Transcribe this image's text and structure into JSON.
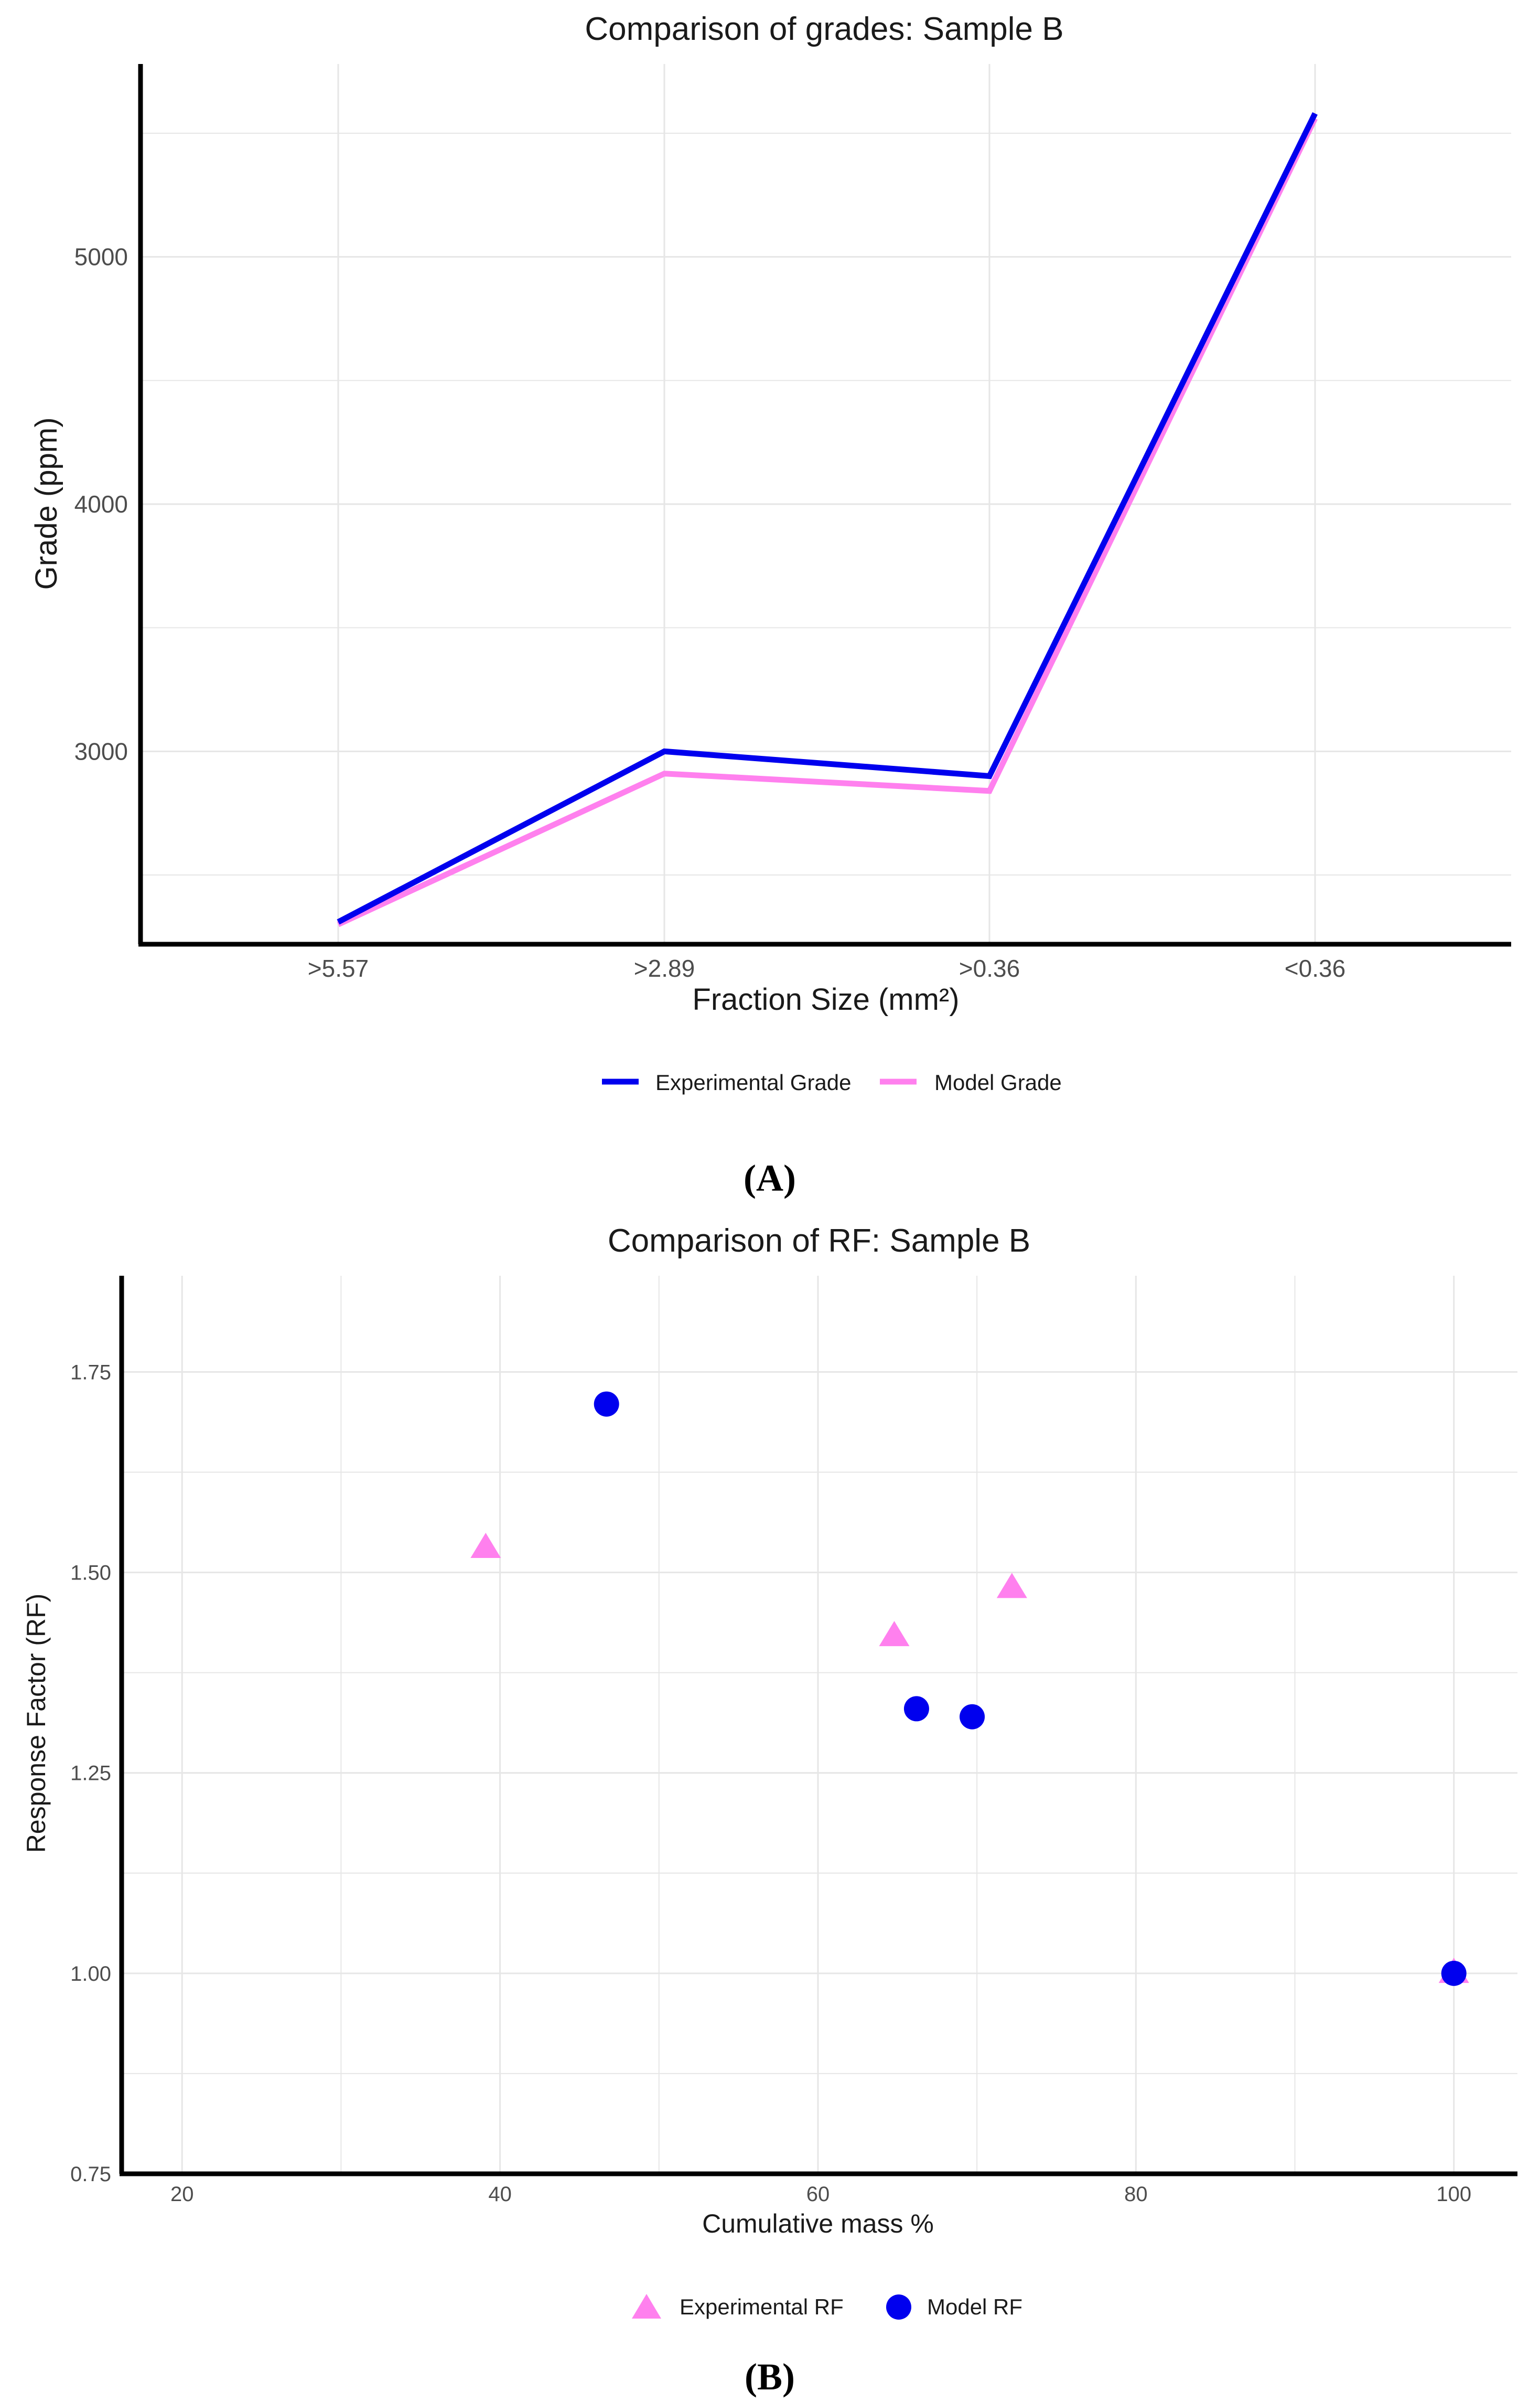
{
  "figure": {
    "panel_labels": [
      "A",
      "B"
    ]
  },
  "colors": {
    "experimental_grade": "#0000ee",
    "model_grade": "#ff80ee",
    "experimental_rf": "#ff80ee",
    "model_rf": "#0000ee",
    "grid": "#e6e6e6",
    "axis": "#000000",
    "tick_text": "#4d4d4d",
    "text": "#1a1a1a"
  },
  "chart_data": [
    {
      "type": "line",
      "title": "Comparison of grades: Sample B",
      "xlabel": "Fraction Size (mm²)",
      "ylabel": "Grade (ppm)",
      "categories": [
        ">5.57",
        ">2.89",
        ">0.36",
        "<0.36"
      ],
      "ylim": [
        2220,
        5780
      ],
      "yticks": [
        3000,
        4000,
        5000
      ],
      "yminor": [
        2500,
        3500,
        4500,
        5500
      ],
      "grid": true,
      "legend_position": "bottom",
      "series": [
        {
          "name": "Experimental Grade",
          "values": [
            2310,
            3000,
            2900,
            5580
          ],
          "color_key": "experimental_grade"
        },
        {
          "name": "Model Grade",
          "values": [
            2300,
            2910,
            2840,
            5560
          ],
          "color_key": "model_grade"
        }
      ]
    },
    {
      "type": "scatter",
      "title": "Comparison of RF: Sample B",
      "xlabel": "Cumulative mass %",
      "ylabel": "Response Factor (RF)",
      "xlim": [
        16.2,
        104.0
      ],
      "ylim": [
        0.75,
        1.87
      ],
      "xticks": [
        20,
        40,
        60,
        80,
        100
      ],
      "xminor": [
        30,
        50,
        70,
        90
      ],
      "yticks": [
        0.75,
        1.0,
        1.25,
        1.5,
        1.75
      ],
      "ytick_labels": [
        "0.75",
        "1.00",
        "1.25",
        "1.50",
        "1.75"
      ],
      "yminor": [
        0.875,
        1.125,
        1.375,
        1.625
      ],
      "grid": true,
      "legend_position": "bottom",
      "series": [
        {
          "name": "Experimental RF",
          "marker": "triangle",
          "color_key": "experimental_rf",
          "points": [
            {
              "x": 39.1,
              "y": 1.53
            },
            {
              "x": 64.8,
              "y": 1.42
            },
            {
              "x": 72.2,
              "y": 1.48
            },
            {
              "x": 100.0,
              "y": 1.0
            }
          ]
        },
        {
          "name": "Model RF",
          "marker": "circle",
          "color_key": "model_rf",
          "points": [
            {
              "x": 46.7,
              "y": 1.71
            },
            {
              "x": 66.2,
              "y": 1.33
            },
            {
              "x": 69.7,
              "y": 1.32
            },
            {
              "x": 100.0,
              "y": 1.0
            }
          ]
        }
      ]
    }
  ]
}
